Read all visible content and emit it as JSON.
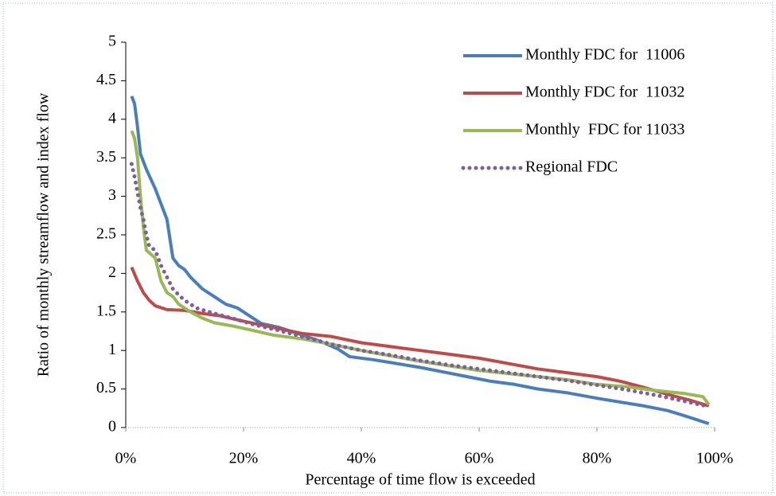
{
  "chart_data": {
    "type": "line",
    "x_label": "Percentage of time flow is exceeded",
    "y_label": "Ratio of monthly streamflow and index flow",
    "xlim": [
      0,
      100
    ],
    "xticks": [
      {
        "value": 0,
        "label": "0%"
      },
      {
        "value": 20,
        "label": "20%"
      },
      {
        "value": 40,
        "label": "40%"
      },
      {
        "value": 60,
        "label": "60%"
      },
      {
        "value": 80,
        "label": "80%"
      },
      {
        "value": 100,
        "label": "100%"
      }
    ],
    "ylim": [
      0,
      5
    ],
    "yticks": [
      0,
      0.5,
      1,
      1.5,
      2,
      2.5,
      3,
      3.5,
      4,
      4.5,
      5
    ],
    "legend": "top-right",
    "series": [
      {
        "name": "Monthly FDC for  11006",
        "color": "#4a7ebb",
        "style": "solid",
        "x": [
          1,
          1.5,
          2,
          2.5,
          3.5,
          5,
          6,
          7,
          8,
          9,
          10,
          11,
          13,
          15,
          17,
          19,
          21,
          23,
          26,
          30,
          33,
          36,
          38,
          42,
          46,
          50,
          54,
          58,
          62,
          66,
          70,
          75,
          80,
          84,
          88,
          92,
          95,
          97,
          99
        ],
        "values": [
          4.3,
          4.2,
          3.9,
          3.55,
          3.35,
          3.1,
          2.9,
          2.7,
          2.2,
          2.1,
          2.05,
          1.95,
          1.8,
          1.7,
          1.6,
          1.55,
          1.45,
          1.35,
          1.3,
          1.2,
          1.12,
          1.02,
          0.92,
          0.88,
          0.83,
          0.78,
          0.72,
          0.66,
          0.6,
          0.56,
          0.5,
          0.45,
          0.38,
          0.33,
          0.28,
          0.22,
          0.15,
          0.1,
          0.05
        ]
      },
      {
        "name": "Monthly FDC for  11032",
        "color": "#be4b48",
        "style": "solid",
        "x": [
          1,
          2,
          3,
          4,
          5,
          7,
          10,
          13,
          16,
          20,
          25,
          30,
          35,
          40,
          45,
          50,
          55,
          60,
          65,
          70,
          75,
          80,
          84,
          88,
          92,
          96,
          99
        ],
        "values": [
          2.08,
          1.9,
          1.75,
          1.65,
          1.58,
          1.53,
          1.52,
          1.48,
          1.45,
          1.38,
          1.3,
          1.22,
          1.18,
          1.1,
          1.05,
          1.0,
          0.95,
          0.9,
          0.83,
          0.76,
          0.71,
          0.66,
          0.6,
          0.52,
          0.43,
          0.35,
          0.28
        ]
      },
      {
        "name": "Monthly  FDC for 11033",
        "color": "#98b954",
        "style": "solid",
        "x": [
          1,
          1.5,
          2,
          2.5,
          3,
          3.5,
          5,
          6,
          7,
          8,
          9,
          11,
          13,
          15,
          18,
          21,
          25,
          30,
          35,
          40,
          45,
          50,
          55,
          60,
          65,
          70,
          75,
          80,
          85,
          90,
          95,
          98,
          99
        ],
        "values": [
          3.85,
          3.75,
          3.5,
          3.0,
          2.6,
          2.3,
          2.2,
          1.9,
          1.75,
          1.7,
          1.6,
          1.5,
          1.42,
          1.36,
          1.32,
          1.27,
          1.2,
          1.15,
          1.08,
          1.0,
          0.93,
          0.86,
          0.8,
          0.74,
          0.7,
          0.66,
          0.62,
          0.56,
          0.53,
          0.48,
          0.44,
          0.4,
          0.3
        ]
      },
      {
        "name": "Regional FDC",
        "color": "#7d5fa0",
        "style": "dotted",
        "x": [
          1,
          1.5,
          2,
          2.5,
          3,
          3.5,
          4,
          5,
          6,
          7,
          8,
          9,
          10,
          12,
          15,
          18,
          22,
          26,
          30,
          35,
          40,
          45,
          50,
          55,
          60,
          65,
          70,
          75,
          80,
          85,
          90,
          95,
          99
        ],
        "values": [
          3.42,
          3.25,
          3.05,
          2.85,
          2.7,
          2.5,
          2.35,
          2.3,
          2.1,
          1.95,
          1.8,
          1.72,
          1.65,
          1.55,
          1.48,
          1.42,
          1.33,
          1.26,
          1.18,
          1.08,
          1.0,
          0.94,
          0.87,
          0.81,
          0.76,
          0.71,
          0.66,
          0.61,
          0.55,
          0.49,
          0.42,
          0.34,
          0.27
        ]
      }
    ]
  }
}
